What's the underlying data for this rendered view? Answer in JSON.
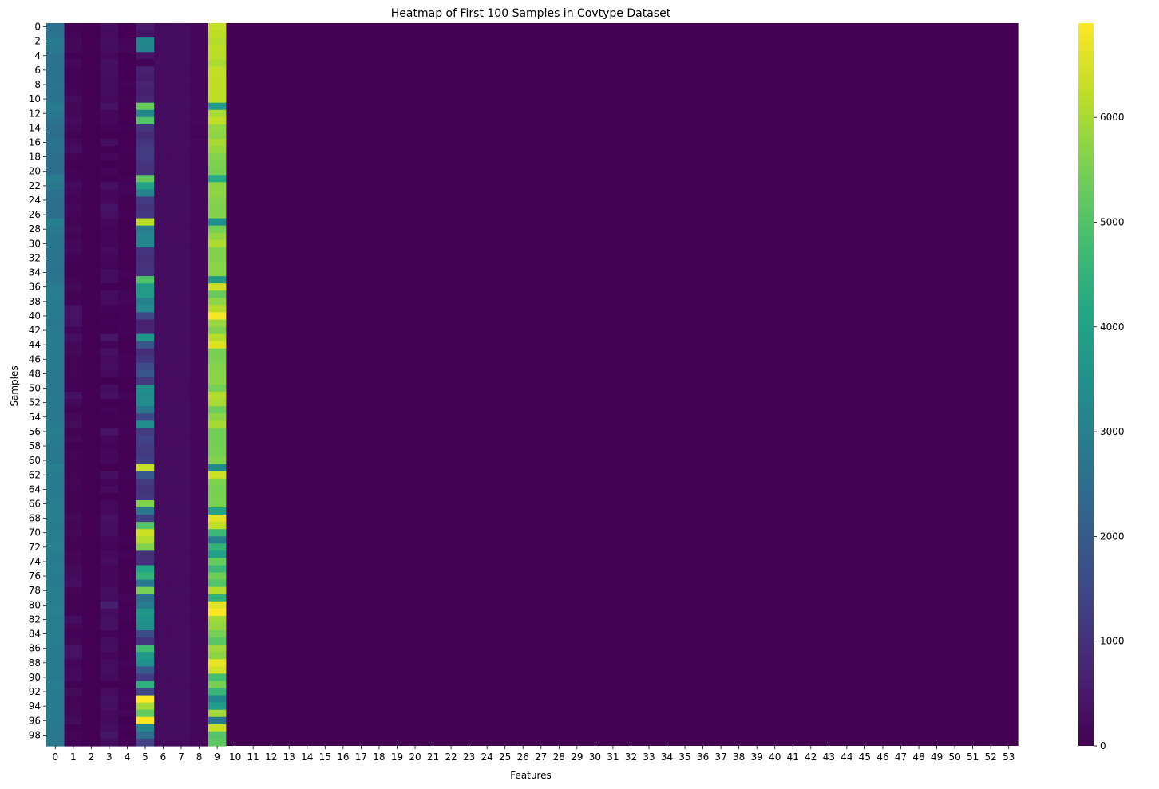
{
  "chart_data": {
    "type": "heatmap",
    "title": "Heatmap of First 100 Samples in Covtype Dataset",
    "xlabel": "Features",
    "ylabel": "Samples",
    "n_rows": 100,
    "n_cols": 54,
    "x_ticks": [
      "0",
      "1",
      "2",
      "3",
      "4",
      "5",
      "6",
      "7",
      "8",
      "9",
      "10",
      "11",
      "12",
      "13",
      "14",
      "15",
      "16",
      "17",
      "18",
      "19",
      "20",
      "21",
      "22",
      "23",
      "24",
      "25",
      "26",
      "27",
      "28",
      "29",
      "30",
      "31",
      "32",
      "33",
      "34",
      "35",
      "36",
      "37",
      "38",
      "39",
      "40",
      "41",
      "42",
      "43",
      "44",
      "45",
      "46",
      "47",
      "48",
      "49",
      "50",
      "51",
      "52",
      "53"
    ],
    "y_ticks": [
      "0",
      "2",
      "4",
      "6",
      "8",
      "10",
      "12",
      "14",
      "16",
      "18",
      "20",
      "22",
      "24",
      "26",
      "28",
      "30",
      "32",
      "34",
      "36",
      "38",
      "40",
      "42",
      "44",
      "46",
      "48",
      "50",
      "52",
      "54",
      "56",
      "58",
      "60",
      "62",
      "64",
      "66",
      "68",
      "70",
      "72",
      "74",
      "76",
      "78",
      "80",
      "82",
      "84",
      "86",
      "88",
      "90",
      "92",
      "94",
      "96",
      "98"
    ],
    "colorbar": {
      "colormap": "viridis",
      "vmin": 0,
      "vmax": 6900,
      "ticks": [
        "0",
        "1000",
        "2000",
        "3000",
        "4000",
        "5000",
        "6000"
      ]
    },
    "columns": {
      "0": [
        2596,
        2590,
        2804,
        2785,
        2595,
        2579,
        2606,
        2605,
        2617,
        2612,
        2612,
        2886,
        2742,
        2609,
        2503,
        2495,
        2610,
        2517,
        2504,
        2503,
        2501,
        2880,
        2768,
        2511,
        2507,
        2492,
        2489,
        2962,
        2811,
        2739,
        2703,
        2641,
        2642,
        2617,
        2612,
        2648,
        2879,
        2923,
        2896,
        2870,
        2846,
        2732,
        2836,
        2896,
        2914,
        2907,
        2879,
        2870,
        2792,
        2803,
        2732,
        2768,
        2800,
        2777,
        2780,
        2875,
        2940,
        2890,
        2812,
        2796,
        2827,
        2979,
        2910,
        2885,
        2853,
        2871,
        2936,
        2980,
        2933,
        2900,
        2951,
        2970,
        2985,
        2907,
        2896,
        2924,
        2878,
        2864,
        2952,
        2927,
        2976,
        2981,
        2908,
        2955,
        2952,
        2932,
        2874,
        2889,
        2898,
        2873,
        2822,
        2929,
        2907,
        2850,
        2862,
        2856,
        2833,
        2802,
        2758,
        2769
      ],
      "1": [
        51,
        56,
        139,
        155,
        45,
        132,
        45,
        49,
        45,
        59,
        201,
        151,
        134,
        214,
        157,
        51,
        157,
        259,
        72,
        0,
        38,
        71,
        209,
        114,
        54,
        133,
        104,
        57,
        154,
        64,
        130,
        171,
        40,
        18,
        21,
        73,
        165,
        69,
        47,
        355,
        349,
        316,
        103,
        279,
        149,
        165,
        83,
        67,
        71,
        70,
        40,
        324,
        159,
        41,
        137,
        225,
        48,
        118,
        26,
        85,
        60,
        45,
        66,
        111,
        69,
        63,
        44,
        56,
        171,
        94,
        135,
        80,
        36,
        103,
        89,
        179,
        224,
        285,
        97,
        44,
        64,
        43,
        287,
        93,
        36,
        119,
        355,
        349,
        89,
        142,
        185,
        52,
        222,
        71,
        89,
        117,
        224,
        30,
        65,
        86
      ],
      "2": [
        3,
        2,
        9,
        18,
        2,
        6,
        7,
        4,
        9,
        10,
        4,
        22,
        24,
        16,
        4,
        4,
        2,
        15,
        13,
        5,
        4,
        8,
        16,
        19,
        10,
        13,
        11,
        11,
        9,
        9,
        10,
        14,
        13,
        7,
        17,
        7,
        17,
        13,
        19,
        16,
        11,
        7,
        22,
        9,
        6,
        12,
        8,
        13,
        9,
        14,
        11,
        10,
        4,
        15,
        5,
        6,
        11,
        12,
        9,
        9,
        11,
        16,
        14,
        7,
        5,
        3,
        5,
        8,
        14,
        6,
        10,
        17,
        10,
        4,
        9,
        7,
        14,
        3,
        12,
        11,
        4,
        9,
        4,
        14,
        9,
        3,
        16,
        8,
        7,
        3,
        5,
        12,
        4,
        14,
        6,
        7,
        5,
        14,
        6,
        7
      ],
      "3": [
        258,
        212,
        268,
        242,
        153,
        300,
        270,
        234,
        240,
        247,
        180,
        371,
        150,
        150,
        67,
        0,
        270,
        0,
        134,
        0,
        108,
        30,
        318,
        138,
        152,
        380,
        283,
        150,
        67,
        90,
        124,
        207,
        120,
        82,
        246,
        240,
        0,
        242,
        218,
        85,
        0,
        50,
        0,
        420,
        90,
        323,
        210,
        285,
        174,
        0,
        234,
        330,
        0,
        67,
        30,
        30,
        391,
        120,
        67,
        150,
        150,
        0,
        300,
        60,
        212,
        0,
        162,
        190,
        322,
        270,
        282,
        150,
        60,
        190,
        240,
        127,
        162,
        127,
        255,
        242,
        600,
        228,
        301,
        320,
        67,
        234,
        270,
        130,
        240,
        258,
        216,
        0,
        201,
        324,
        309,
        180,
        201,
        272,
        420,
        240
      ],
      "4": [
        0,
        -6,
        65,
        118,
        -1,
        -15,
        5,
        7,
        56,
        11,
        51,
        -3,
        16,
        6,
        35,
        5,
        7,
        33,
        21,
        24,
        5,
        42,
        64,
        61,
        25,
        -3,
        59,
        3,
        0,
        8,
        7,
        -3,
        10,
        3,
        64,
        14,
        19,
        61,
        104,
        36,
        44,
        44,
        66,
        26,
        1,
        13,
        73,
        74,
        48,
        0,
        1,
        71,
        9,
        22,
        53,
        28,
        42,
        2,
        14,
        5,
        25,
        14,
        35,
        -3,
        23,
        29,
        12,
        22,
        28,
        0,
        24,
        62,
        6,
        67,
        30,
        24,
        10,
        23,
        17,
        93,
        18,
        43,
        31,
        9,
        42,
        43,
        17,
        14,
        68,
        25,
        52,
        19,
        35,
        64,
        5,
        91,
        2,
        44,
        0,
        52
      ],
      "5": [
        510,
        390,
        3180,
        3090,
        391,
        67,
        633,
        573,
        666,
        636,
        735,
        5253,
        3180,
        5031,
        1092,
        857,
        1050,
        1205,
        1189,
        1057,
        1022,
        5236,
        4030,
        3098,
        1185,
        1064,
        1152,
        6180,
        2902,
        3100,
        3190,
        1060,
        960,
        990,
        1041,
        5000,
        3850,
        3740,
        2970,
        3240,
        1502,
        640,
        720,
        3600,
        1890,
        900,
        1140,
        1570,
        1850,
        1162,
        3450,
        3315,
        3310,
        2680,
        1530,
        3420,
        1200,
        1360,
        1230,
        1210,
        1302,
        6280,
        1910,
        1200,
        1050,
        1140,
        5580,
        2760,
        1350,
        5060,
        6390,
        6100,
        5590,
        960,
        1010,
        4130,
        4510,
        2860,
        5480,
        2520,
        2860,
        3670,
        3520,
        3400,
        1610,
        1040,
        4720,
        3730,
        3480,
        1910,
        1260,
        4390,
        1520,
        6920,
        5920,
        5230,
        6900,
        3130,
        2470,
        1330
      ],
      "6": [
        221,
        220,
        234,
        238,
        220,
        230,
        222,
        222,
        223,
        228,
        218,
        234,
        248,
        226,
        243,
        250,
        222,
        216,
        213,
        228,
        218,
        220,
        233,
        221,
        240,
        238,
        234,
        218,
        210,
        219,
        227,
        231,
        226,
        228,
        230,
        220,
        236,
        235,
        240,
        225,
        240,
        235,
        230,
        245,
        238,
        235,
        236,
        225,
        226,
        208,
        219,
        195,
        225,
        225,
        240,
        224,
        219,
        213,
        228,
        225,
        214,
        225,
        235,
        229,
        224,
        223,
        223,
        227,
        230,
        225,
        221,
        216,
        224,
        213,
        221,
        223,
        215,
        212,
        227,
        230,
        218,
        210,
        221,
        211,
        200,
        204,
        215,
        219,
        222,
        217,
        201,
        213,
        227,
        225,
        211,
        230,
        220,
        215,
        230,
        225
      ],
      "7": [
        232,
        235,
        238,
        238,
        234,
        237,
        225,
        230,
        221,
        219,
        228,
        234,
        226,
        231,
        208,
        203,
        230,
        218,
        212,
        223,
        218,
        214,
        229,
        241,
        238,
        235,
        232,
        230,
        216,
        231,
        226,
        238,
        234,
        236,
        239,
        227,
        243,
        227,
        233,
        240,
        242,
        239,
        245,
        229,
        233,
        236,
        233,
        228,
        236,
        216,
        224,
        213,
        232,
        234,
        239,
        234,
        227,
        226,
        232,
        237,
        229,
        232,
        233,
        237,
        228,
        228,
        230,
        236,
        232,
        228,
        231,
        227,
        232,
        222,
        228,
        228,
        221,
        224,
        238,
        226,
        224,
        229,
        222,
        230,
        228,
        232,
        228,
        234,
        235,
        239,
        230,
        224,
        236,
        234,
        230,
        232,
        233,
        237,
        221,
        225
      ],
      "8": [
        148,
        151,
        135,
        122,
        150,
        140,
        138,
        144,
        133,
        124,
        152,
        142,
        116,
        132,
        103,
        83,
        141,
        134,
        134,
        131,
        134,
        130,
        128,
        147,
        130,
        128,
        135,
        141,
        142,
        139,
        134,
        143,
        143,
        141,
        141,
        135,
        136,
        131,
        118,
        143,
        153,
        139,
        149,
        120,
        136,
        132,
        132,
        142,
        146,
        135,
        139,
        145,
        135,
        137,
        128,
        141,
        136,
        137,
        138,
        143,
        145,
        135,
        125,
        141,
        141,
        135,
        140,
        141,
        130,
        137,
        141,
        147,
        140,
        144,
        141,
        144,
        144,
        149,
        139,
        129,
        137,
        154,
        133,
        146,
        158,
        155,
        148,
        145,
        140,
        146,
        157,
        144,
        140,
        140,
        151,
        131,
        143,
        153,
        130,
        137
      ],
      "9": [
        6279,
        6225,
        6121,
        6211,
        6172,
        6031,
        6256,
        6228,
        6244,
        6230,
        6222,
        3800,
        5990,
        6230,
        5770,
        5720,
        6005,
        5810,
        5600,
        5540,
        5500,
        4200,
        5690,
        5730,
        5640,
        5590,
        5610,
        3410,
        5480,
        5780,
        6040,
        5600,
        5610,
        5670,
        5660,
        3850,
        6370,
        5270,
        5710,
        6130,
        6840,
        5830,
        5590,
        6140,
        6520,
        5500,
        5510,
        5640,
        5660,
        5680,
        5470,
        6110,
        6010,
        5350,
        5690,
        5990,
        5410,
        5430,
        5460,
        5490,
        5600,
        3310,
        6370,
        5560,
        5480,
        5530,
        5510,
        4000,
        6610,
        6240,
        4670,
        2970,
        4510,
        3900,
        5290,
        4650,
        5380,
        5050,
        6110,
        4470,
        6610,
        6870,
        5900,
        5800,
        5440,
        5120,
        5900,
        5710,
        6680,
        6410,
        4860,
        5450,
        4590,
        3200,
        3880,
        5950,
        2770,
        6290,
        5060,
        5170
      ]
    }
  }
}
